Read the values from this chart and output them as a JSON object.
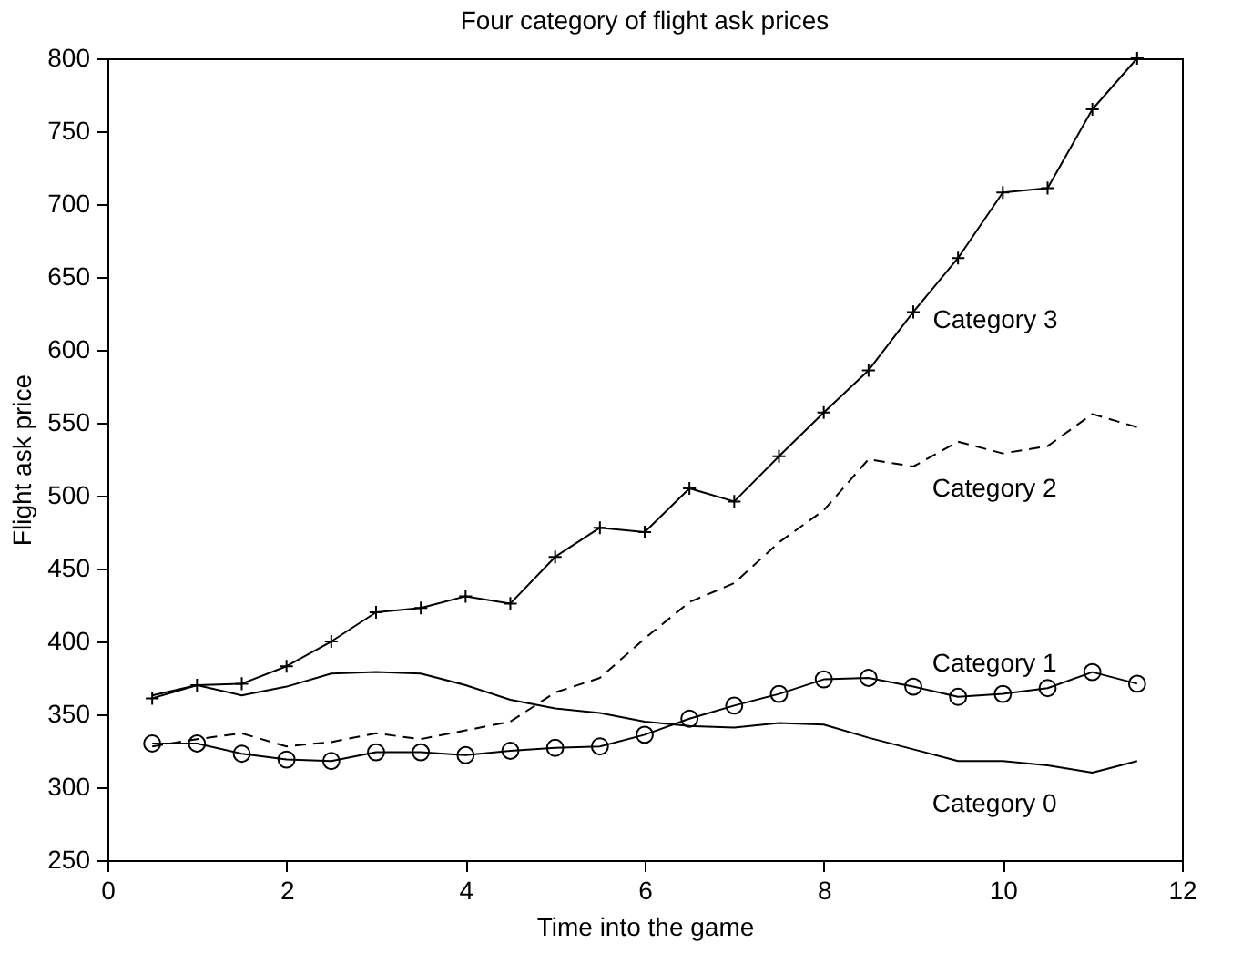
{
  "chart_data": {
    "type": "line",
    "title": "Four category of flight ask prices",
    "xlabel": "Time into the game",
    "ylabel": "Flight ask price",
    "x": [
      0.5,
      1,
      1.5,
      2,
      2.5,
      3,
      3.5,
      4,
      4.5,
      5,
      5.5,
      6,
      6.5,
      7,
      7.5,
      8,
      8.5,
      9,
      9.5,
      10,
      10.5,
      11,
      11.5
    ],
    "series": [
      {
        "name": "Category 0",
        "color": "#000000",
        "marker": "none",
        "line_style": "solid",
        "values": [
          363,
          370,
          363,
          369,
          378,
          379,
          378,
          370,
          360,
          354,
          351,
          345,
          342,
          341,
          344,
          343,
          334,
          326,
          318,
          318,
          315,
          310,
          318
        ]
      },
      {
        "name": "Category 1",
        "color": "#000000",
        "marker": "circle",
        "line_style": "solid",
        "values": [
          330,
          330,
          323,
          319,
          318,
          324,
          324,
          322,
          325,
          327,
          328,
          336,
          347,
          356,
          364,
          374,
          375,
          369,
          362,
          364,
          368,
          379,
          371
        ]
      },
      {
        "name": "Category 2",
        "color": "#000000",
        "marker": "none",
        "line_style": "dashed",
        "values": [
          328,
          333,
          337,
          328,
          331,
          337,
          333,
          339,
          345,
          365,
          375,
          402,
          427,
          440,
          468,
          490,
          525,
          520,
          537,
          529,
          534,
          556,
          547
        ]
      },
      {
        "name": "Category 3",
        "color": "#000000",
        "marker": "cross",
        "line_style": "solid",
        "values": [
          361,
          370,
          371,
          383,
          400,
          420,
          423,
          431,
          426,
          458,
          478,
          475,
          505,
          496,
          527,
          557,
          586,
          626,
          663,
          708,
          711,
          765,
          800
        ]
      }
    ],
    "xlim": [
      0,
      12
    ],
    "xticks": [
      0,
      2,
      4,
      6,
      8,
      10,
      12
    ],
    "ylim": [
      250,
      800
    ],
    "yticks": [
      250,
      300,
      350,
      400,
      450,
      500,
      550,
      600,
      650,
      700,
      750,
      800
    ],
    "grid": false
  }
}
